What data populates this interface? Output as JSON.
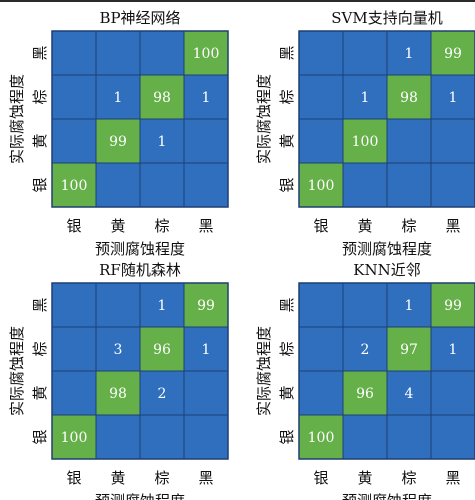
{
  "colors": {
    "low": "#2f6fbd",
    "high": "#66b04a",
    "grid": "#1e3f73",
    "text": "#ffffff"
  },
  "chart_data": [
    {
      "type": "heatmap",
      "title": "BP神经网络",
      "xlabel": "预测腐蚀程度",
      "ylabel": "实际腐蚀程度",
      "x_categories": [
        "银",
        "黄",
        "棕",
        "黑"
      ],
      "y_categories": [
        "黑",
        "棕",
        "黄",
        "银"
      ],
      "values": [
        [
          null,
          null,
          null,
          100
        ],
        [
          null,
          1,
          98,
          1
        ],
        [
          null,
          99,
          1,
          null
        ],
        [
          100,
          null,
          null,
          null
        ]
      ]
    },
    {
      "type": "heatmap",
      "title": "SVM支持向量机",
      "xlabel": "预测腐蚀程度",
      "ylabel": "实际腐蚀程度",
      "x_categories": [
        "银",
        "黄",
        "棕",
        "黑"
      ],
      "y_categories": [
        "黑",
        "棕",
        "黄",
        "银"
      ],
      "values": [
        [
          null,
          null,
          1,
          99
        ],
        [
          null,
          1,
          98,
          1
        ],
        [
          null,
          100,
          null,
          null
        ],
        [
          100,
          null,
          null,
          null
        ]
      ]
    },
    {
      "type": "heatmap",
      "title": "RF随机森林",
      "xlabel": "预测腐蚀程度",
      "ylabel": "实际腐蚀程度",
      "x_categories": [
        "银",
        "黄",
        "棕",
        "黑"
      ],
      "y_categories": [
        "黑",
        "棕",
        "黄",
        "银"
      ],
      "values": [
        [
          null,
          null,
          1,
          99
        ],
        [
          null,
          3,
          96,
          1
        ],
        [
          null,
          98,
          2,
          null
        ],
        [
          100,
          null,
          null,
          null
        ]
      ]
    },
    {
      "type": "heatmap",
      "title": "KNN近邻",
      "xlabel": "预测腐蚀程度",
      "ylabel": "实际腐蚀程度",
      "x_categories": [
        "银",
        "黄",
        "棕",
        "黑"
      ],
      "y_categories": [
        "黑",
        "棕",
        "黄",
        "银"
      ],
      "values": [
        [
          null,
          null,
          1,
          99
        ],
        [
          null,
          2,
          97,
          1
        ],
        [
          null,
          96,
          4,
          null
        ],
        [
          100,
          null,
          null,
          null
        ]
      ]
    }
  ]
}
